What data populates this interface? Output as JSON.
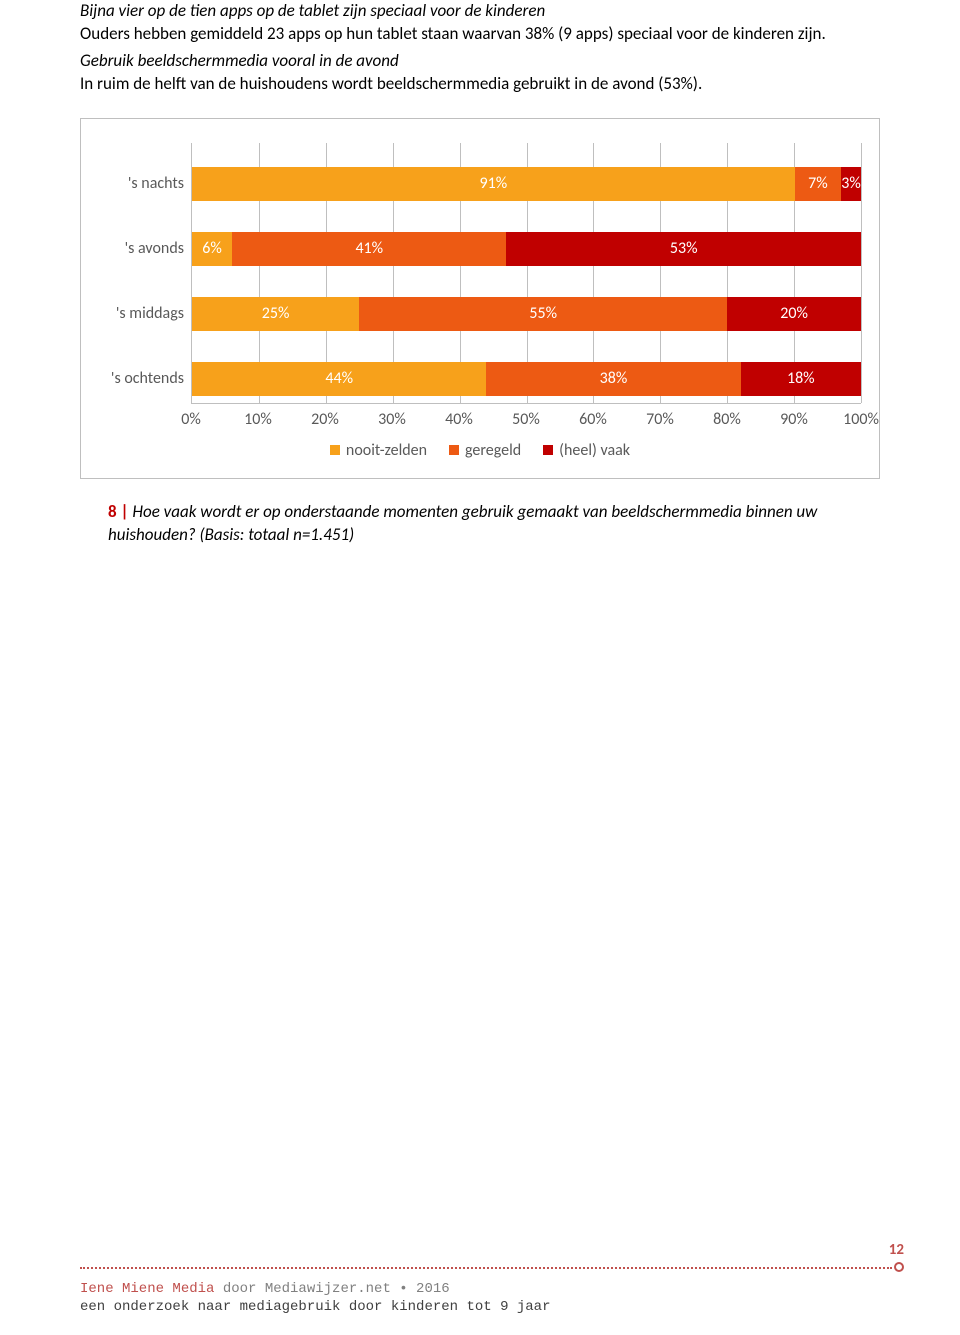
{
  "text": {
    "h1": "Bijna vier op de tien apps op de tablet zijn speciaal voor de kinderen",
    "p1": "Ouders hebben gemiddeld 23 apps op hun tablet staan waarvan 38% (9 apps) speciaal voor de kinderen zijn.",
    "h2": "Gebruik beeldschermmedia vooral in de avond",
    "p2": "In ruim de helft van de huishoudens wordt beeldschermmedia gebruikt in de avond (53%)."
  },
  "chart": {
    "series_colors": [
      "#f7a11b",
      "#ed5a13",
      "#c00000"
    ],
    "legend_labels": [
      "nooit-zelden",
      "geregeld",
      "(heel) vaak"
    ],
    "grid_color": "#bfbfbf",
    "label_color": "#595959",
    "label_fontsize": 16,
    "categories": [
      "'s nachts",
      "'s avonds",
      "'s middags",
      "'s ochtends"
    ],
    "values": [
      [
        91,
        7,
        3
      ],
      [
        6,
        41,
        53
      ],
      [
        25,
        55,
        20
      ],
      [
        44,
        38,
        18
      ]
    ],
    "value_labels": [
      [
        "91%",
        "7%",
        "3%"
      ],
      [
        "6%",
        "41%",
        "53%"
      ],
      [
        "25%",
        "55%",
        "20%"
      ],
      [
        "44%",
        "38%",
        "18%"
      ]
    ],
    "row_tops": [
      24,
      89,
      154,
      219
    ],
    "xticks": [
      0,
      10,
      20,
      30,
      40,
      50,
      60,
      70,
      80,
      90,
      100
    ],
    "xtick_labels": [
      "0%",
      "10%",
      "20%",
      "30%",
      "40%",
      "50%",
      "60%",
      "70%",
      "80%",
      "90%",
      "100%"
    ]
  },
  "caption": {
    "num": "8",
    "bar": " | ",
    "text": "Hoe vaak wordt er op onderstaande momenten gebruik gemaakt van beeldschermmedia binnen uw huishouden? (Basis: totaal n=1.451)"
  },
  "footer": {
    "page": "12",
    "brand": "Iene Miene Media",
    "by": " door Mediawijzer.net • 2016",
    "sub": "een onderzoek naar mediagebruik door kinderen tot 9 jaar",
    "accent": "#c0504d"
  }
}
